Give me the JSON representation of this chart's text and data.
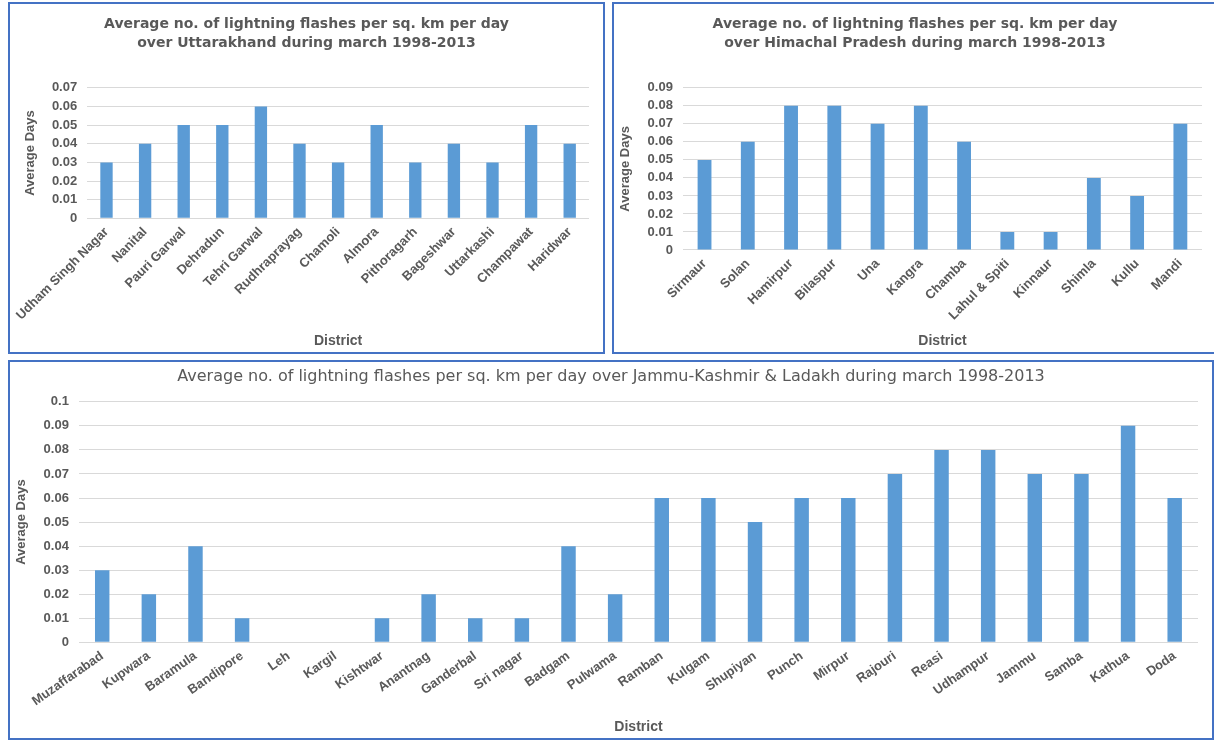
{
  "chart_data": [
    {
      "type": "bar",
      "title": "Average no. of lightning flashes per sq. km per day over Uttarakhand during march 1998-2013",
      "xlabel": "District",
      "ylabel": "Average Days",
      "categories": [
        "Udham Singh Nagar",
        "Nanital",
        "Pauri Garwal",
        "Dehradun",
        "Tehri Garwal",
        "Rudhraprayag",
        "Chamoli",
        "Almora",
        "Pithoragarh",
        "Bageshwar",
        "Uttarkashi",
        "Champawat",
        "Haridwar"
      ],
      "values": [
        0.03,
        0.04,
        0.05,
        0.05,
        0.06,
        0.04,
        0.03,
        0.05,
        0.03,
        0.04,
        0.03,
        0.05,
        0.04
      ],
      "color": "#5b9bd5",
      "ylim": [
        0,
        0.07
      ],
      "yticks": [
        0,
        0.01,
        0.02,
        0.03,
        0.04,
        0.05,
        0.06,
        0.07
      ],
      "grid": "y"
    },
    {
      "type": "bar",
      "title": "Average no. of lightning flashes per sq. km per day over Himachal Pradesh during march 1998-2013",
      "xlabel": "District",
      "ylabel": "Average Days",
      "categories": [
        "Sirmaur",
        "Solan",
        "Hamirpur",
        "Bilaspur",
        "Una",
        "Kangra",
        "Chamba",
        "Lahul & Spiti",
        "Kinnaur",
        "Shimla",
        "Kullu",
        "Mandi"
      ],
      "values": [
        0.05,
        0.06,
        0.08,
        0.08,
        0.07,
        0.08,
        0.06,
        0.01,
        0.01,
        0.04,
        0.03,
        0.07
      ],
      "color": "#5b9bd5",
      "ylim": [
        0,
        0.09
      ],
      "yticks": [
        0,
        0.01,
        0.02,
        0.03,
        0.04,
        0.05,
        0.06,
        0.07,
        0.08,
        0.09
      ],
      "grid": "y"
    },
    {
      "type": "bar",
      "title": "Average no. of lightning flashes per sq. km per day over Jammu-Kashmir & Ladakh during march 1998-2013",
      "xlabel": "District",
      "ylabel": "Average Days",
      "categories": [
        "Muzaffarabad",
        "Kupwara",
        "Baramula",
        "Bandipore",
        "Leh",
        "Kargil",
        "Kishtwar",
        "Anantnag",
        "Ganderbal",
        "Sri nagar",
        "Badgam",
        "Pulwama",
        "Ramban",
        "Kulgam",
        "Shupiyan",
        "Punch",
        "Mirpur",
        "Rajouri",
        "Reasi",
        "Udhampur",
        "Jammu",
        "Samba",
        "Kathua",
        "Doda"
      ],
      "values": [
        0.03,
        0.02,
        0.04,
        0.01,
        0,
        0,
        0.01,
        0.02,
        0.01,
        0.01,
        0.04,
        0.02,
        0.06,
        0.06,
        0.05,
        0.06,
        0.06,
        0.07,
        0.08,
        0.08,
        0.07,
        0.07,
        0.09,
        0.06
      ],
      "color": "#5b9bd5",
      "ylim": [
        0,
        0.1
      ],
      "yticks": [
        0,
        0.01,
        0.02,
        0.03,
        0.04,
        0.05,
        0.06,
        0.07,
        0.08,
        0.09,
        0.1
      ],
      "grid": "y"
    }
  ]
}
